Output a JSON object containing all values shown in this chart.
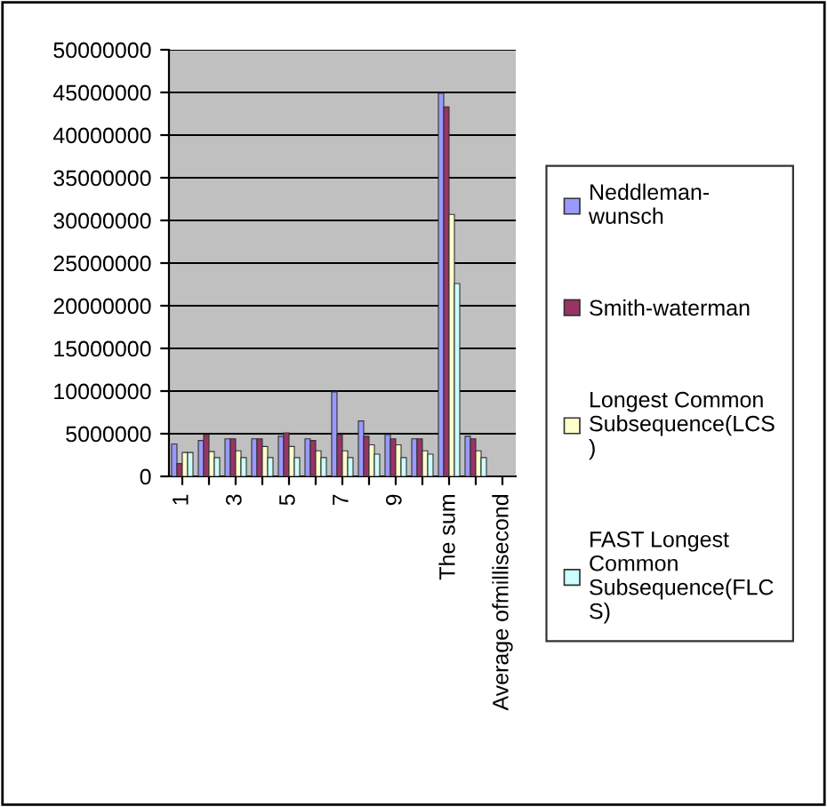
{
  "chart_data": {
    "type": "bar",
    "categories": [
      "1",
      null,
      "3",
      null,
      "5",
      null,
      "7",
      null,
      "9",
      null,
      "The sum",
      null,
      "Average ofmillisecond"
    ],
    "series": [
      {
        "name": "Neddleman-wunsch",
        "color": "#9999ff",
        "values": [
          3800000,
          4200000,
          4400000,
          4400000,
          4700000,
          4400000,
          9900000,
          6500000,
          4900000,
          4400000,
          44900000,
          4700000,
          null
        ]
      },
      {
        "name": "Smith-waterman",
        "color": "#993366",
        "values": [
          1500000,
          4900000,
          4400000,
          4400000,
          5100000,
          4200000,
          4900000,
          4700000,
          4400000,
          4400000,
          43300000,
          4400000,
          null
        ]
      },
      {
        "name": "Longest Common Subsequence(LCS)",
        "color": "#ffffcc",
        "values": [
          2800000,
          2900000,
          3000000,
          3500000,
          3500000,
          3000000,
          3000000,
          3700000,
          3700000,
          3000000,
          30700000,
          3000000,
          null
        ]
      },
      {
        "name": "FAST Longest Common Subsequence(FLCS)",
        "color": "#ccffff",
        "values": [
          2800000,
          2200000,
          2200000,
          2200000,
          2200000,
          2200000,
          2200000,
          2600000,
          2200000,
          2600000,
          22600000,
          2200000,
          null
        ]
      }
    ],
    "ylim": [
      0,
      50000000
    ],
    "yticks": [
      0,
      5000000,
      10000000,
      15000000,
      20000000,
      25000000,
      30000000,
      35000000,
      40000000,
      45000000,
      50000000
    ],
    "grid": "y",
    "legend": "right"
  }
}
